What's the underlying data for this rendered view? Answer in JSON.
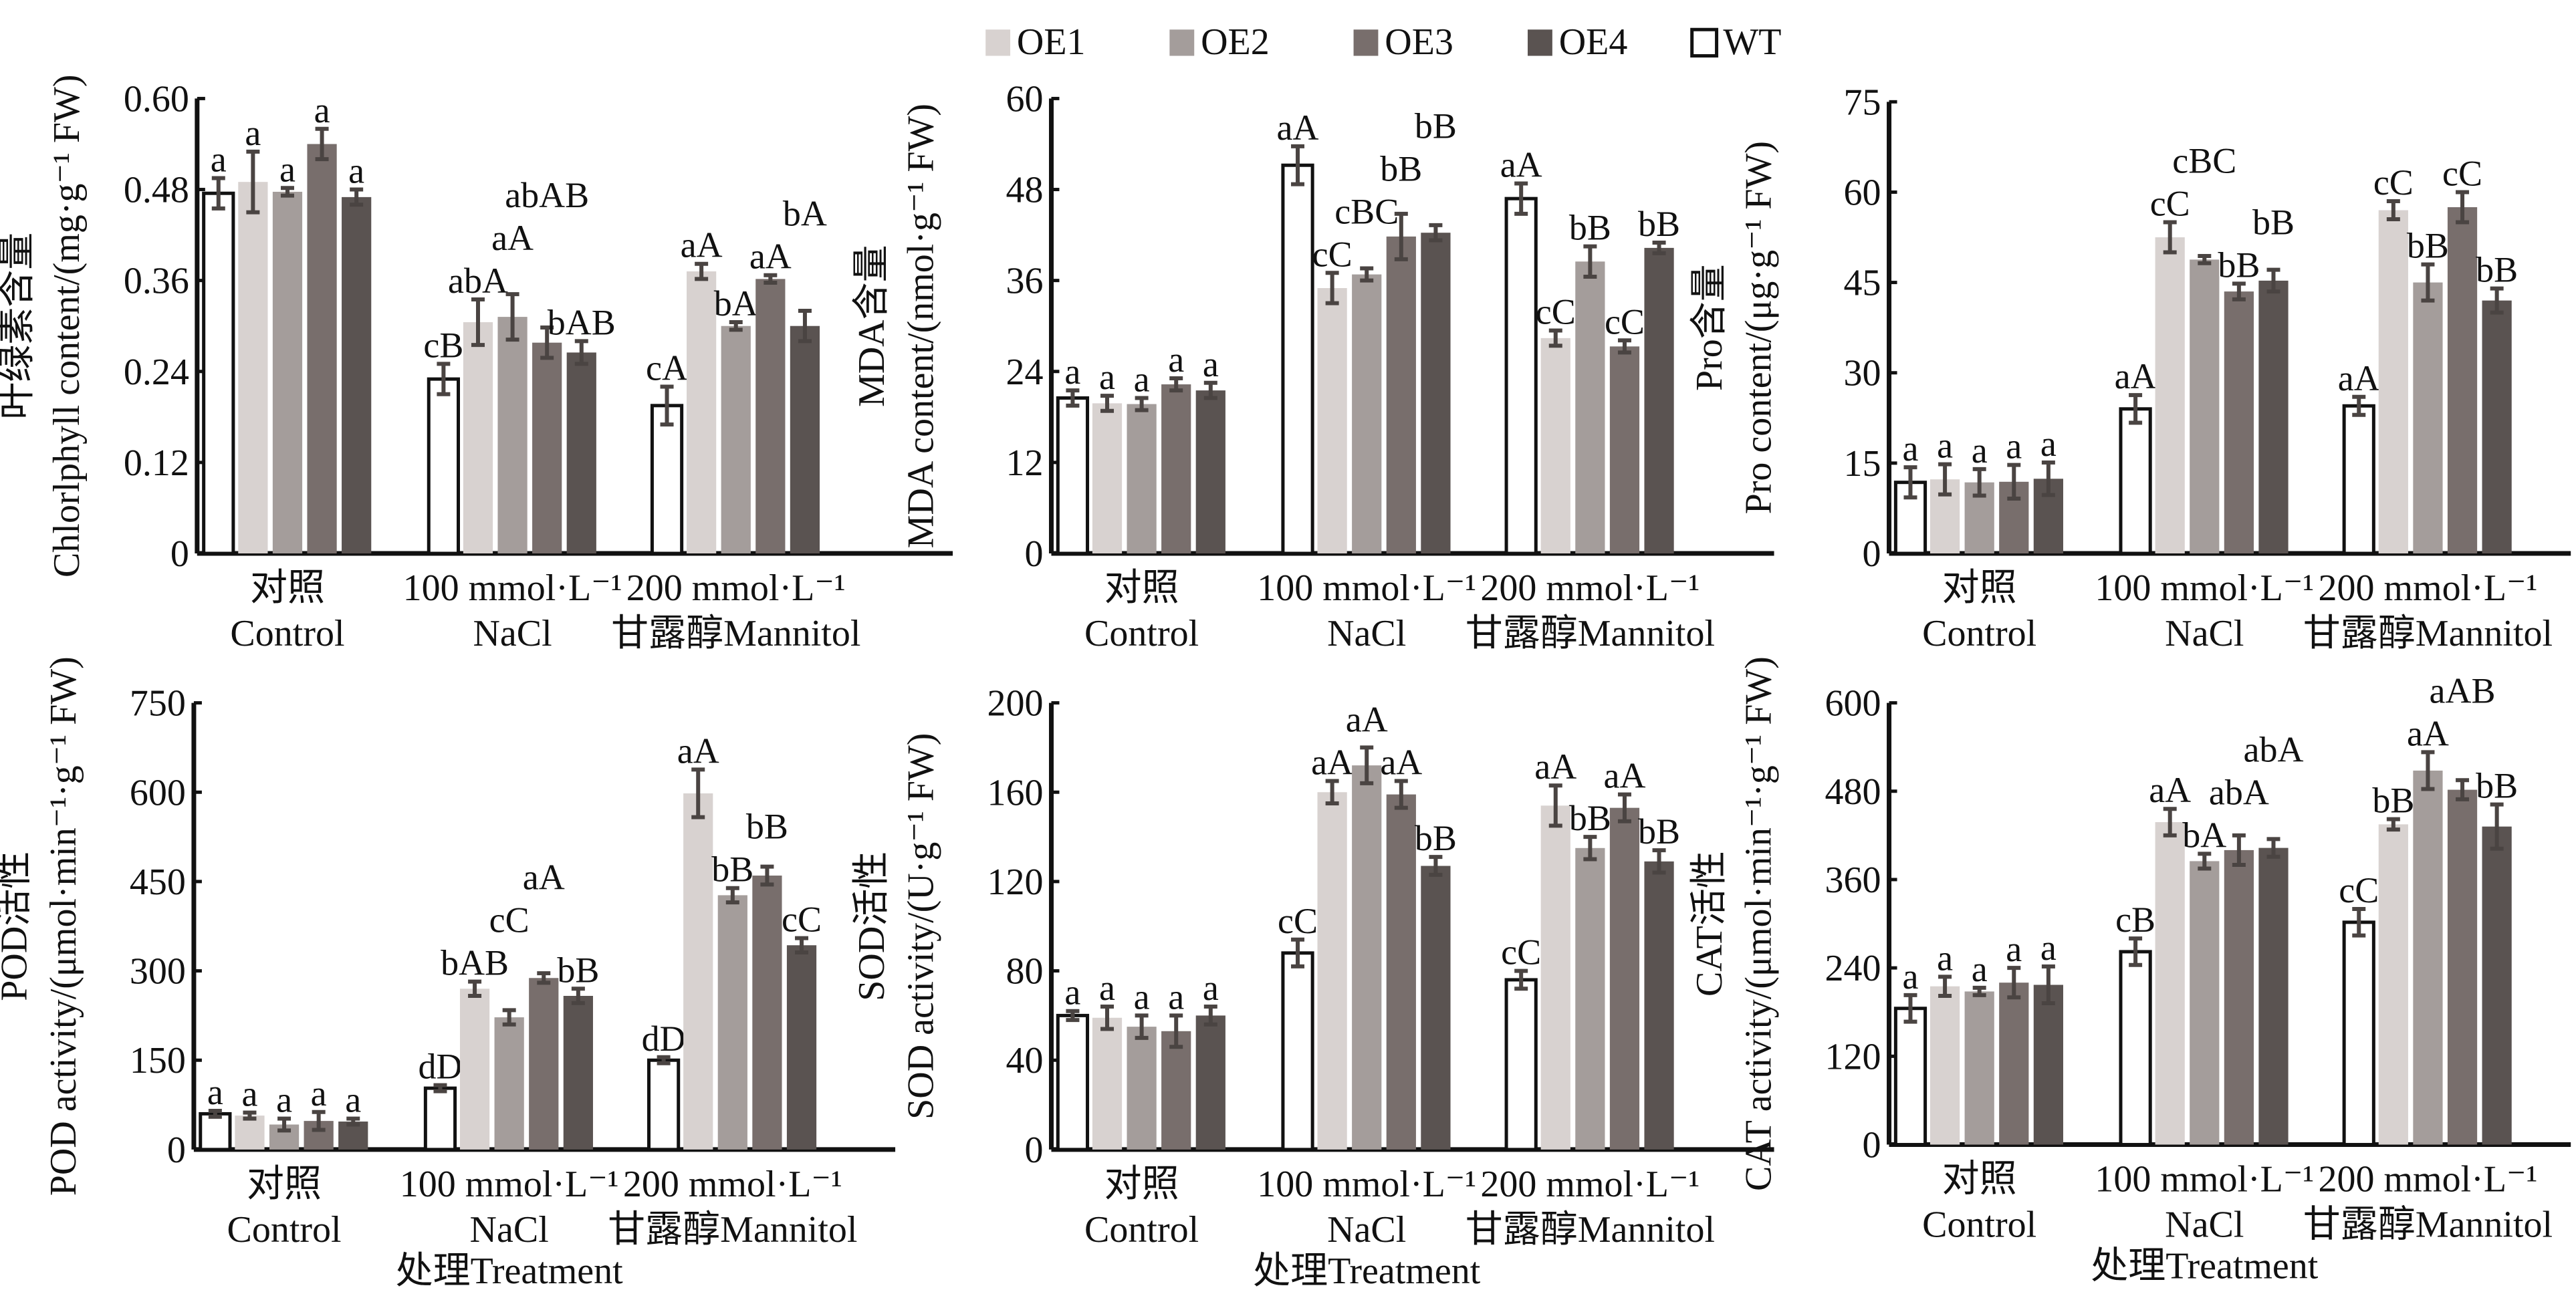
{
  "legend": [
    {
      "name": "OE1",
      "color": "#d8d2d0"
    },
    {
      "name": "OE2",
      "color": "#a49d9b"
    },
    {
      "name": "OE3",
      "color": "#786e6c"
    },
    {
      "name": "OE4",
      "color": "#5a5351"
    },
    {
      "name": "WT",
      "color": "#ffffff"
    }
  ],
  "series_order": [
    "WT",
    "OE1",
    "OE2",
    "OE3",
    "OE4"
  ],
  "xlabel": "处理Treatment",
  "chart_data": [
    {
      "type": "bar",
      "ylabel_cn": "叶绿素含量",
      "ylabel_en": "Chlorlphyll content/(mg·g⁻¹ FW)",
      "ylim": [
        0,
        0.6
      ],
      "yticks": [
        "0",
        "0.12",
        "0.24",
        "0.36",
        "0.48",
        "0.60"
      ],
      "categories": [
        [
          "对照",
          "Control"
        ],
        [
          "100 mmol·L⁻¹",
          "NaCl"
        ],
        [
          "200 mmol·L⁻¹",
          "甘露醇Mannitol"
        ]
      ],
      "series": [
        {
          "name": "WT",
          "values": [
            0.475,
            0.23,
            0.195
          ],
          "errors": [
            0.02,
            0.02,
            0.025
          ],
          "letters": [
            "a",
            "cB",
            "cA"
          ]
        },
        {
          "name": "OE1",
          "values": [
            0.49,
            0.305,
            0.372
          ],
          "errors": [
            0.04,
            0.03,
            0.01
          ],
          "letters": [
            "a",
            "abA",
            "aA"
          ]
        },
        {
          "name": "OE2",
          "values": [
            0.477,
            0.312,
            0.3
          ],
          "errors": [
            0.005,
            0.03,
            0.005
          ],
          "letters": [
            "a",
            "aA",
            "bA"
          ]
        },
        {
          "name": "OE3",
          "values": [
            0.54,
            0.278,
            0.362
          ],
          "errors": [
            0.02,
            0.02,
            0.005
          ],
          "letters": [
            "a",
            "abAB",
            "aA"
          ]
        },
        {
          "name": "OE4",
          "values": [
            0.47,
            0.265,
            0.3
          ],
          "errors": [
            0.01,
            0.015,
            0.02
          ],
          "letters": [
            "a",
            "bAB",
            "bA"
          ]
        }
      ]
    },
    {
      "type": "bar",
      "ylabel_cn": "MDA含量",
      "ylabel_en": "MDA content/(nmol·g⁻¹ FW)",
      "ylim": [
        0,
        60
      ],
      "yticks": [
        "0",
        "12",
        "24",
        "36",
        "48",
        "60"
      ],
      "categories": [
        [
          "对照",
          "Control"
        ],
        [
          "100 mmol·L⁻¹",
          "NaCl"
        ],
        [
          "200 mmol·L⁻¹",
          "甘露醇Mannitol"
        ]
      ],
      "series": [
        {
          "name": "WT",
          "values": [
            20.5,
            51.2,
            46.8
          ],
          "errors": [
            1,
            2.5,
            2
          ],
          "letters": [
            "a",
            "aA",
            "aA"
          ]
        },
        {
          "name": "OE1",
          "values": [
            19.8,
            35,
            28.4
          ],
          "errors": [
            1,
            2,
            1
          ],
          "letters": [
            "a",
            "cC",
            "cC"
          ]
        },
        {
          "name": "OE2",
          "values": [
            19.7,
            36.8,
            38.5
          ],
          "errors": [
            0.8,
            0.8,
            2
          ],
          "letters": [
            "a",
            "cBC",
            "bB"
          ]
        },
        {
          "name": "OE3",
          "values": [
            22.3,
            41.8,
            27.3
          ],
          "errors": [
            0.8,
            3,
            0.8
          ],
          "letters": [
            "a",
            "bB",
            "cC"
          ]
        },
        {
          "name": "OE4",
          "values": [
            21.5,
            42.3,
            40.3
          ],
          "errors": [
            1,
            1,
            0.7
          ],
          "letters": [
            "a",
            "bB",
            "bB"
          ]
        }
      ]
    },
    {
      "type": "bar",
      "ylabel_cn": "Pro含量",
      "ylabel_en": "Pro content/(μg·g⁻¹ FW)",
      "ylim": [
        0,
        75
      ],
      "yticks": [
        "0",
        "15",
        "30",
        "45",
        "60",
        "75"
      ],
      "categories": [
        [
          "对照",
          "Control"
        ],
        [
          "100 mmol·L⁻¹",
          "NaCl"
        ],
        [
          "200 mmol·L⁻¹",
          "甘露醇Mannitol"
        ]
      ],
      "series": [
        {
          "name": "WT",
          "values": [
            11.8,
            24,
            24.5
          ],
          "errors": [
            2.5,
            2.3,
            1.5
          ],
          "letters": [
            "a",
            "aA",
            "aA"
          ]
        },
        {
          "name": "OE1",
          "values": [
            12.3,
            52.5,
            57
          ],
          "errors": [
            2.5,
            2.5,
            1.5
          ],
          "letters": [
            "a",
            "cC",
            "cC"
          ]
        },
        {
          "name": "OE2",
          "values": [
            11.8,
            48.8,
            45
          ],
          "errors": [
            2.2,
            0.6,
            3
          ],
          "letters": [
            "a",
            "cBC",
            "bB"
          ]
        },
        {
          "name": "OE3",
          "values": [
            11.9,
            43.5,
            57.5
          ],
          "errors": [
            2.8,
            1.3,
            2.5
          ],
          "letters": [
            "a",
            "bB",
            "cC"
          ]
        },
        {
          "name": "OE4",
          "values": [
            12.4,
            45.3,
            42
          ],
          "errors": [
            2.7,
            1.8,
            2
          ],
          "letters": [
            "a",
            "bB",
            "bB"
          ]
        }
      ]
    },
    {
      "type": "bar",
      "ylabel_cn": "POD活性",
      "ylabel_en": "POD activity/(μmol·min⁻¹·g⁻¹ FW)",
      "ylim": [
        0,
        750
      ],
      "yticks": [
        "0",
        "150",
        "300",
        "450",
        "600",
        "750"
      ],
      "categories": [
        [
          "对照",
          "Control"
        ],
        [
          "100 mmol·L⁻¹",
          "NaCl"
        ],
        [
          "200 mmol·L⁻¹",
          "甘露醇Mannitol"
        ]
      ],
      "series": [
        {
          "name": "WT",
          "values": [
            60,
            103,
            150
          ],
          "errors": [
            5,
            5,
            5
          ],
          "letters": [
            "a",
            "dD",
            "dD"
          ]
        },
        {
          "name": "OE1",
          "values": [
            57,
            270,
            598
          ],
          "errors": [
            5,
            12,
            40
          ],
          "letters": [
            "a",
            "bAB",
            "aA"
          ]
        },
        {
          "name": "OE2",
          "values": [
            42,
            222,
            427
          ],
          "errors": [
            10,
            12,
            12
          ],
          "letters": [
            "a",
            "cC",
            "bB"
          ]
        },
        {
          "name": "OE3",
          "values": [
            48,
            288,
            460
          ],
          "errors": [
            15,
            8,
            15
          ],
          "letters": [
            "a",
            "aA",
            "bB"
          ]
        },
        {
          "name": "OE4",
          "values": [
            47,
            258,
            343
          ],
          "errors": [
            5,
            12,
            12
          ],
          "letters": [
            "a",
            "bB",
            "cC"
          ]
        }
      ]
    },
    {
      "type": "bar",
      "ylabel_cn": "SOD活性",
      "ylabel_en": "SOD activity/(U·g⁻¹ FW)",
      "ylim": [
        0,
        200
      ],
      "yticks": [
        "0",
        "40",
        "80",
        "120",
        "160",
        "200"
      ],
      "categories": [
        [
          "对照",
          "Control"
        ],
        [
          "100 mmol·L⁻¹",
          "NaCl"
        ],
        [
          "200 mmol·L⁻¹",
          "甘露醇Mannitol"
        ]
      ],
      "series": [
        {
          "name": "WT",
          "values": [
            60,
            88,
            76
          ],
          "errors": [
            2,
            6,
            4
          ],
          "letters": [
            "a",
            "cC",
            "cC"
          ]
        },
        {
          "name": "OE1",
          "values": [
            59,
            160,
            154
          ],
          "errors": [
            5,
            5,
            9
          ],
          "letters": [
            "a",
            "aA",
            "aA"
          ]
        },
        {
          "name": "OE2",
          "values": [
            55,
            172,
            135
          ],
          "errors": [
            5,
            8,
            5
          ],
          "letters": [
            "a",
            "aA",
            "bB"
          ]
        },
        {
          "name": "OE3",
          "values": [
            53,
            159,
            153
          ],
          "errors": [
            7,
            6,
            6
          ],
          "letters": [
            "a",
            "aA",
            "aA"
          ]
        },
        {
          "name": "OE4",
          "values": [
            60,
            127,
            129
          ],
          "errors": [
            4,
            4,
            5
          ],
          "letters": [
            "a",
            "bB",
            "bB"
          ]
        }
      ]
    },
    {
      "type": "bar",
      "ylabel_cn": "CAT活性",
      "ylabel_en": "CAT activity/(μmol·min⁻¹·g⁻¹ FW)",
      "ylim": [
        0,
        600
      ],
      "yticks": [
        "0",
        "120",
        "240",
        "360",
        "480",
        "600"
      ],
      "categories": [
        [
          "对照",
          "Control"
        ],
        [
          "100 mmol·L⁻¹",
          "NaCl"
        ],
        [
          "200 mmol·L⁻¹",
          "甘露醇Mannitol"
        ]
      ],
      "series": [
        {
          "name": "WT",
          "values": [
            185,
            262,
            302
          ],
          "errors": [
            18,
            18,
            18
          ],
          "letters": [
            "a",
            "cB",
            "cC"
          ]
        },
        {
          "name": "OE1",
          "values": [
            215,
            438,
            435
          ],
          "errors": [
            13,
            18,
            7
          ],
          "letters": [
            "a",
            "aA",
            "bB"
          ]
        },
        {
          "name": "OE2",
          "values": [
            208,
            385,
            508
          ],
          "errors": [
            5,
            10,
            25
          ],
          "letters": [
            "a",
            "bA",
            "aA"
          ]
        },
        {
          "name": "OE3",
          "values": [
            220,
            400,
            482
          ],
          "errors": [
            20,
            20,
            13
          ],
          "letters": [
            "a",
            "abA",
            "aAB"
          ]
        },
        {
          "name": "OE4",
          "values": [
            217,
            403,
            432
          ],
          "errors": [
            25,
            12,
            30
          ],
          "letters": [
            "a",
            "abA",
            "bB"
          ]
        }
      ]
    }
  ]
}
